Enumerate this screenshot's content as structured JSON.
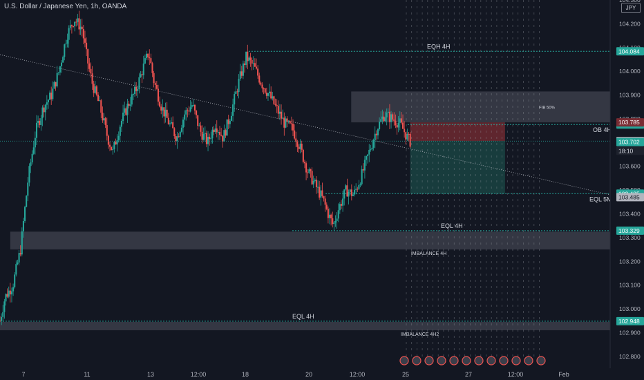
{
  "header": {
    "title": "U.S. Dollar / Japanese Yen, 1h, OANDA",
    "currency": "JPY"
  },
  "colors": {
    "background": "#131722",
    "up_candle": "#26a69a",
    "down_candle": "#ef5350",
    "level_line": "#26a69a",
    "zone_fill": "#434651",
    "stop_zone": "#7a2c33",
    "target_zone": "#1b4a47",
    "current_price_line": "#26a69a"
  },
  "chart_data": {
    "type": "candlestick",
    "title": "U.S. Dollar / Japanese Yen, 1h, OANDA",
    "ylim": [
      102.75,
      104.3
    ],
    "y_ticks": [
      "104.300",
      "104.200",
      "104.100",
      "104.000",
      "103.900",
      "103.800",
      "103.700",
      "103.600",
      "103.500",
      "103.400",
      "103.300",
      "103.200",
      "103.100",
      "103.000",
      "102.900",
      "102.800"
    ],
    "x_ticks": [
      "7",
      "11",
      "13",
      "12:00",
      "18",
      "20",
      "12:00",
      "25",
      "27",
      "12:00",
      "Feb"
    ],
    "price_path": [
      [
        0,
        102.95
      ],
      [
        2,
        103.05
      ],
      [
        5,
        103.1
      ],
      [
        8,
        103.25
      ],
      [
        11,
        103.55
      ],
      [
        14,
        103.75
      ],
      [
        17,
        103.85
      ],
      [
        20,
        103.9
      ],
      [
        23,
        104.0
      ],
      [
        26,
        104.15
      ],
      [
        29,
        104.22
      ],
      [
        32,
        104.18
      ],
      [
        34,
        104.05
      ],
      [
        36,
        103.95
      ],
      [
        39,
        103.85
      ],
      [
        42,
        103.72
      ],
      [
        44,
        103.66
      ],
      [
        47,
        103.78
      ],
      [
        50,
        103.86
      ],
      [
        53,
        103.92
      ],
      [
        56,
        104.02
      ],
      [
        58,
        104.08
      ],
      [
        60,
        103.96
      ],
      [
        63,
        103.85
      ],
      [
        66,
        103.78
      ],
      [
        69,
        103.72
      ],
      [
        72,
        103.82
      ],
      [
        75,
        103.86
      ],
      [
        78,
        103.75
      ],
      [
        81,
        103.7
      ],
      [
        84,
        103.78
      ],
      [
        87,
        103.72
      ],
      [
        90,
        103.82
      ],
      [
        93,
        103.95
      ],
      [
        96,
        104.06
      ],
      [
        99,
        104.02
      ],
      [
        102,
        103.95
      ],
      [
        105,
        103.9
      ],
      [
        108,
        103.84
      ],
      [
        111,
        103.78
      ],
      [
        114,
        103.76
      ],
      [
        117,
        103.68
      ],
      [
        120,
        103.58
      ],
      [
        123,
        103.52
      ],
      [
        126,
        103.46
      ],
      [
        128,
        103.4
      ],
      [
        130,
        103.35
      ],
      [
        132,
        103.42
      ],
      [
        135,
        103.5
      ],
      [
        138,
        103.48
      ],
      [
        141,
        103.56
      ],
      [
        144,
        103.66
      ],
      [
        147,
        103.76
      ],
      [
        150,
        103.82
      ],
      [
        153,
        103.8
      ],
      [
        156,
        103.78
      ],
      [
        159,
        103.72
      ],
      [
        160,
        103.704
      ]
    ],
    "last_index": 160,
    "x_max": 238,
    "trendline": {
      "from": [
        0,
        104.07
      ],
      "to": [
        238,
        103.48
      ]
    },
    "levels": [
      {
        "label": "EQH 4H",
        "price": 104.084,
        "from": 97,
        "to": 238,
        "price_label": "104.084"
      },
      {
        "label": "OB 4H",
        "price": 103.776,
        "from": 159,
        "to": 238,
        "price_label": "103.776"
      },
      {
        "label": "EQL 5M",
        "price": 103.485,
        "from": 127,
        "to": 238,
        "price_label": "103.485"
      },
      {
        "label": "EQL 4H",
        "price": 103.329,
        "from": 114,
        "to": 238,
        "price_label": "103.329"
      },
      {
        "label": "EQL 4H",
        "price": 102.948,
        "from": 0,
        "to": 238,
        "price_label": "102.948"
      }
    ],
    "zones": [
      {
        "label": "",
        "top": 103.915,
        "bottom": 103.785,
        "from": 137,
        "to": 238
      },
      {
        "label": "IMBALANCE 4H",
        "top": 103.325,
        "bottom": 103.25,
        "from": 4,
        "to": 238
      },
      {
        "label": "IMBALANCE 4H2",
        "top": 102.945,
        "bottom": 102.91,
        "from": 0,
        "to": 238
      }
    ],
    "annotations": {
      "fib": "FIB 50%"
    },
    "position": {
      "from": 160,
      "to": 197,
      "stop": 103.785,
      "entry": 103.706,
      "target": 103.485
    },
    "current_price": 103.706,
    "price_labels": [
      {
        "text": "103.785",
        "price": 103.785,
        "kind": "red"
      },
      {
        "text": "103.706",
        "price": 103.706,
        "kind": "grey"
      },
      {
        "text": "103.702",
        "price": 103.702,
        "kind": "green"
      },
      {
        "text": "18:10",
        "price": 103.665,
        "kind": "dark"
      },
      {
        "text": "103.485",
        "price": 103.47,
        "kind": "grey"
      }
    ]
  }
}
